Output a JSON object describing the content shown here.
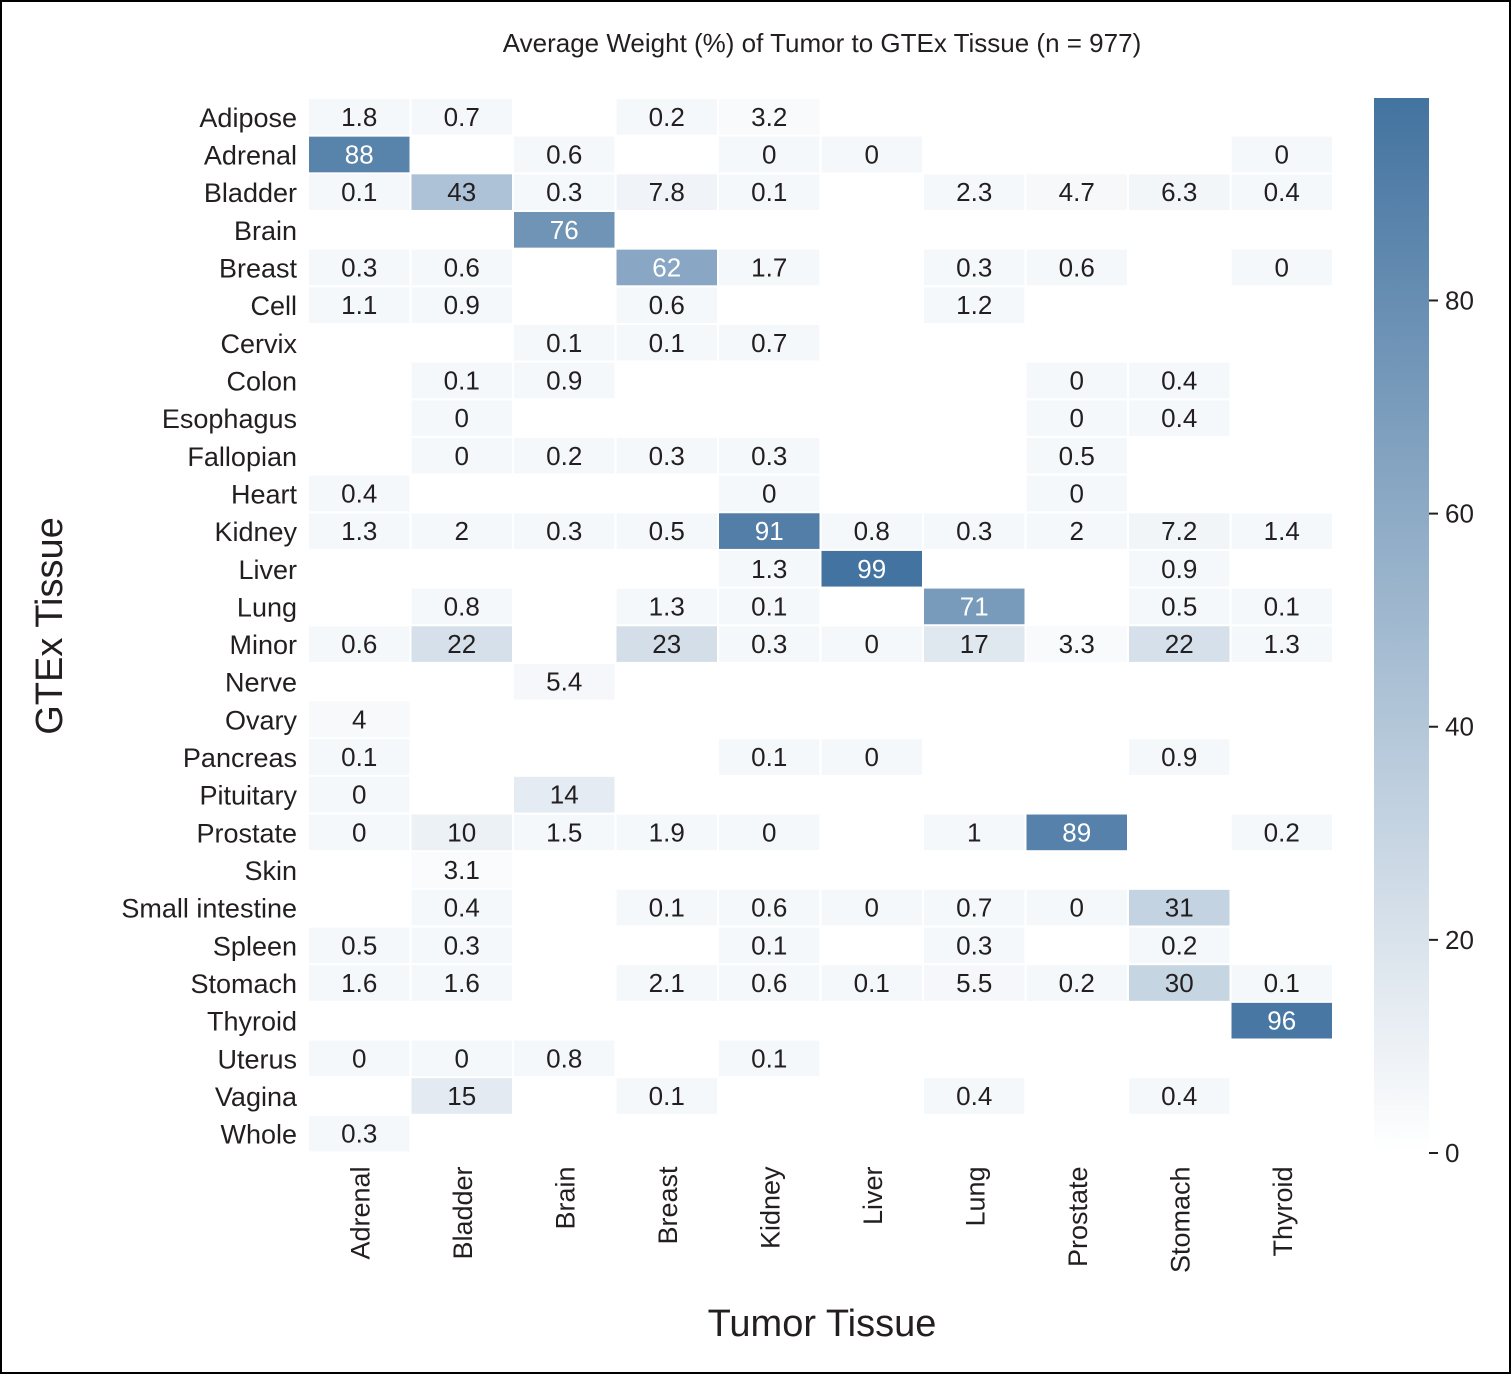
{
  "chart_data": {
    "type": "heatmap",
    "title": "Average Weight (%) of Tumor to GTEx Tissue (n = 977)",
    "xlabel": "Tumor Tissue",
    "ylabel": "GTEx Tissue",
    "x_categories": [
      "Adrenal",
      "Bladder",
      "Brain",
      "Breast",
      "Kidney",
      "Liver",
      "Lung",
      "Prostate",
      "Stomach",
      "Thyroid"
    ],
    "y_categories": [
      "Adipose",
      "Adrenal",
      "Bladder",
      "Brain",
      "Breast",
      "Cell",
      "Cervix",
      "Colon",
      "Esophagus",
      "Fallopian",
      "Heart",
      "Kidney",
      "Liver",
      "Lung",
      "Minor",
      "Nerve",
      "Ovary",
      "Pancreas",
      "Pituitary",
      "Prostate",
      "Skin",
      "Small intestine",
      "Spleen",
      "Stomach",
      "Thyroid",
      "Uterus",
      "Vagina",
      "Whole"
    ],
    "values": [
      [
        1.8,
        0.7,
        null,
        0.2,
        3.2,
        null,
        null,
        null,
        null,
        null
      ],
      [
        88,
        null,
        0.6,
        null,
        0,
        0,
        null,
        null,
        null,
        0
      ],
      [
        0.1,
        43,
        0.3,
        7.8,
        0.1,
        null,
        2.3,
        4.7,
        6.3,
        0.4
      ],
      [
        null,
        null,
        76,
        null,
        null,
        null,
        null,
        null,
        null,
        null
      ],
      [
        0.3,
        0.6,
        null,
        62,
        1.7,
        null,
        0.3,
        0.6,
        null,
        0
      ],
      [
        1.1,
        0.9,
        null,
        0.6,
        null,
        null,
        1.2,
        null,
        null,
        null
      ],
      [
        null,
        null,
        0.1,
        0.1,
        0.7,
        null,
        null,
        null,
        null,
        null
      ],
      [
        null,
        0.1,
        0.9,
        null,
        null,
        null,
        null,
        0,
        0.4,
        null
      ],
      [
        null,
        0,
        null,
        null,
        null,
        null,
        null,
        0,
        0.4,
        null
      ],
      [
        null,
        0,
        0.2,
        0.3,
        0.3,
        null,
        null,
        0.5,
        null,
        null
      ],
      [
        0.4,
        null,
        null,
        null,
        0,
        null,
        null,
        0,
        null,
        null
      ],
      [
        1.3,
        2,
        0.3,
        0.5,
        91,
        0.8,
        0.3,
        2,
        7.2,
        1.4
      ],
      [
        null,
        null,
        null,
        null,
        1.3,
        99,
        null,
        null,
        0.9,
        null
      ],
      [
        null,
        0.8,
        null,
        1.3,
        0.1,
        null,
        71,
        null,
        0.5,
        0.1
      ],
      [
        0.6,
        22,
        null,
        23,
        0.3,
        0,
        17,
        3.3,
        22,
        1.3
      ],
      [
        null,
        null,
        5.4,
        null,
        null,
        null,
        null,
        null,
        null,
        null
      ],
      [
        4,
        null,
        null,
        null,
        null,
        null,
        null,
        null,
        null,
        null
      ],
      [
        0.1,
        null,
        null,
        null,
        0.1,
        0,
        null,
        null,
        0.9,
        null
      ],
      [
        0,
        null,
        14,
        null,
        null,
        null,
        null,
        null,
        null,
        null
      ],
      [
        0,
        10,
        1.5,
        1.9,
        0,
        null,
        1,
        89,
        null,
        0.2
      ],
      [
        null,
        3.1,
        null,
        null,
        null,
        null,
        null,
        null,
        null,
        null
      ],
      [
        null,
        0.4,
        null,
        0.1,
        0.6,
        0,
        0.7,
        0,
        31,
        null
      ],
      [
        0.5,
        0.3,
        null,
        null,
        0.1,
        null,
        0.3,
        null,
        0.2,
        null
      ],
      [
        1.6,
        1.6,
        null,
        2.1,
        0.6,
        0.1,
        5.5,
        0.2,
        30,
        0.1
      ],
      [
        null,
        null,
        null,
        null,
        null,
        null,
        null,
        null,
        null,
        96
      ],
      [
        0,
        0,
        0.8,
        null,
        0.1,
        null,
        null,
        null,
        null,
        null
      ],
      [
        null,
        15,
        null,
        0.1,
        null,
        null,
        0.4,
        null,
        0.4,
        null
      ],
      [
        0.3,
        null,
        null,
        null,
        null,
        null,
        null,
        null,
        null,
        null
      ]
    ],
    "colorbar": {
      "min": 0,
      "max": 99,
      "ticks": [
        "0",
        "20",
        "40",
        "60",
        "80"
      ],
      "color_low": "#ffffff",
      "color_high": "#4373a0"
    },
    "grid": false
  }
}
